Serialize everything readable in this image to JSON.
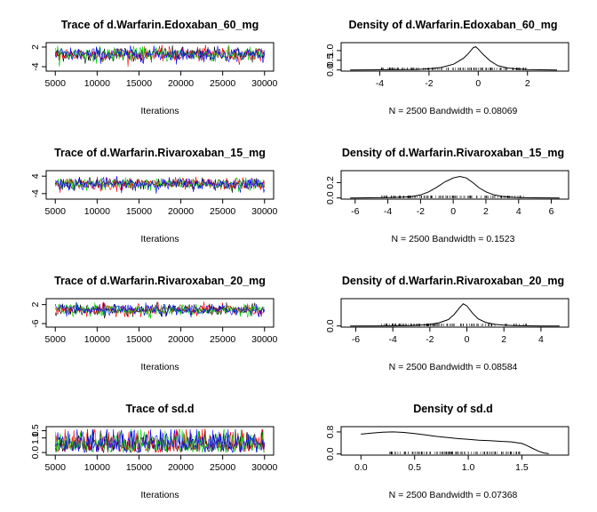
{
  "chart_data": [
    {
      "type": "line",
      "title": "Trace of d.Warfarin.Edoxaban_60_mg",
      "xlabel": "Iterations",
      "ylabel": "",
      "x_range": [
        5000,
        30000
      ],
      "x_ticks": [
        "5000",
        "10000",
        "15000",
        "20000",
        "25000",
        "30000"
      ],
      "y_range": [
        -5,
        3
      ],
      "y_ticks": [
        "-4",
        "2"
      ],
      "chain_colors": [
        "#000000",
        "#ff0000",
        "#00cd00",
        "#0000ff"
      ],
      "center": -0.2,
      "spread": 1.1
    },
    {
      "type": "area",
      "title": "Density of d.Warfarin.Edoxaban_60_mg",
      "xlabel": "N = 2500   Bandwidth = 0.08069",
      "x_range": [
        -5.2,
        3.3
      ],
      "x_ticks": [
        "-4",
        "-2",
        "0",
        "2"
      ],
      "y_range": [
        0,
        1.35
      ],
      "y_ticks": [
        "0.0",
        "0.5",
        "1.0"
      ],
      "x": [
        -5.2,
        -4,
        -3,
        -2.5,
        -2,
        -1.5,
        -1,
        -0.6,
        -0.4,
        -0.2,
        -0.1,
        0,
        0.2,
        0.5,
        0.8,
        1.2,
        1.6,
        2,
        2.5,
        3.2
      ],
      "y": [
        0.0,
        0.01,
        0.02,
        0.03,
        0.06,
        0.13,
        0.3,
        0.6,
        0.85,
        1.15,
        1.2,
        1.08,
        0.8,
        0.45,
        0.22,
        0.1,
        0.05,
        0.02,
        0.01,
        0.0
      ]
    },
    {
      "type": "line",
      "title": "Trace of d.Warfarin.Rivaroxaban_15_mg",
      "xlabel": "Iterations",
      "x_range": [
        5000,
        30000
      ],
      "x_ticks": [
        "5000",
        "10000",
        "15000",
        "20000",
        "25000",
        "30000"
      ],
      "y_range": [
        -6,
        6
      ],
      "y_ticks": [
        "-4",
        "4"
      ],
      "chain_colors": [
        "#000000",
        "#ff0000",
        "#00cd00",
        "#0000ff"
      ],
      "center": 0.4,
      "spread": 1.4
    },
    {
      "type": "area",
      "title": "Density of d.Warfarin.Rivaroxaban_15_mg",
      "xlabel": "N = 2500   Bandwidth = 0.1523",
      "x_range": [
        -6.3,
        6.5
      ],
      "x_ticks": [
        "-6",
        "-4",
        "-2",
        "0",
        "2",
        "4",
        "6"
      ],
      "y_range": [
        0,
        0.34
      ],
      "y_ticks": [
        "0.0",
        "0.2"
      ],
      "x": [
        -6.3,
        -4,
        -3,
        -2.5,
        -2,
        -1.5,
        -1,
        -0.5,
        0,
        0.4,
        0.8,
        1.2,
        1.6,
        2,
        2.5,
        3,
        3.5,
        4,
        5,
        6.5
      ],
      "y": [
        0.0,
        0.005,
        0.012,
        0.02,
        0.04,
        0.08,
        0.14,
        0.21,
        0.26,
        0.28,
        0.26,
        0.2,
        0.13,
        0.08,
        0.04,
        0.02,
        0.012,
        0.006,
        0.002,
        0.0
      ]
    },
    {
      "type": "line",
      "title": "Trace of d.Warfarin.Rivaroxaban_20_mg",
      "xlabel": "Iterations",
      "x_range": [
        5000,
        30000
      ],
      "x_ticks": [
        "5000",
        "10000",
        "15000",
        "20000",
        "25000",
        "30000"
      ],
      "y_range": [
        -7,
        4
      ],
      "y_ticks": [
        "-6",
        "2"
      ],
      "chain_colors": [
        "#000000",
        "#ff0000",
        "#00cd00",
        "#0000ff"
      ],
      "center": -0.3,
      "spread": 1.2
    },
    {
      "type": "area",
      "title": "Density of d.Warfarin.Rivaroxaban_20_mg",
      "xlabel": "N = 2500   Bandwidth = 0.08584",
      "x_range": [
        -6.3,
        5.0
      ],
      "x_ticks": [
        "-6",
        "-4",
        "-2",
        "0",
        "2",
        "4"
      ],
      "y_range": [
        0,
        0.65
      ],
      "y_ticks": [
        "0.0"
      ],
      "x": [
        -6.3,
        -4,
        -3,
        -2.5,
        -2,
        -1.5,
        -1,
        -0.7,
        -0.4,
        -0.2,
        0,
        0.3,
        0.6,
        1,
        1.5,
        2,
        2.5,
        3,
        4,
        5
      ],
      "y": [
        0.0,
        0.003,
        0.01,
        0.02,
        0.04,
        0.08,
        0.16,
        0.28,
        0.45,
        0.55,
        0.5,
        0.32,
        0.18,
        0.09,
        0.04,
        0.02,
        0.01,
        0.004,
        0.001,
        0.0
      ]
    },
    {
      "type": "line",
      "title": "Trace of sd.d",
      "xlabel": "Iterations",
      "x_range": [
        5000,
        30000
      ],
      "x_ticks": [
        "5000",
        "10000",
        "15000",
        "20000",
        "25000",
        "30000"
      ],
      "y_range": [
        -0.1,
        1.7
      ],
      "y_ticks": [
        "0.0",
        "1.0",
        "1.5"
      ],
      "chain_colors": [
        "#000000",
        "#ff0000",
        "#00cd00",
        "#0000ff"
      ],
      "bounded": true
    },
    {
      "type": "area",
      "title": "Density of sd.d",
      "xlabel": "N = 2500   Bandwidth = 0.07368",
      "x_range": [
        -0.1,
        1.85
      ],
      "x_ticks": [
        "0.0",
        "0.5",
        "1.0",
        "1.5"
      ],
      "y_range": [
        0,
        0.95
      ],
      "y_ticks": [
        "0.0",
        "0.8"
      ],
      "x": [
        0,
        0.1,
        0.2,
        0.3,
        0.4,
        0.5,
        0.6,
        0.7,
        0.8,
        0.9,
        1.0,
        1.1,
        1.2,
        1.3,
        1.4,
        1.5,
        1.55,
        1.6,
        1.65,
        1.7,
        1.75
      ],
      "y": [
        0.72,
        0.76,
        0.79,
        0.8,
        0.78,
        0.74,
        0.69,
        0.64,
        0.6,
        0.56,
        0.53,
        0.5,
        0.48,
        0.46,
        0.44,
        0.38,
        0.3,
        0.2,
        0.11,
        0.04,
        0.01
      ]
    }
  ]
}
